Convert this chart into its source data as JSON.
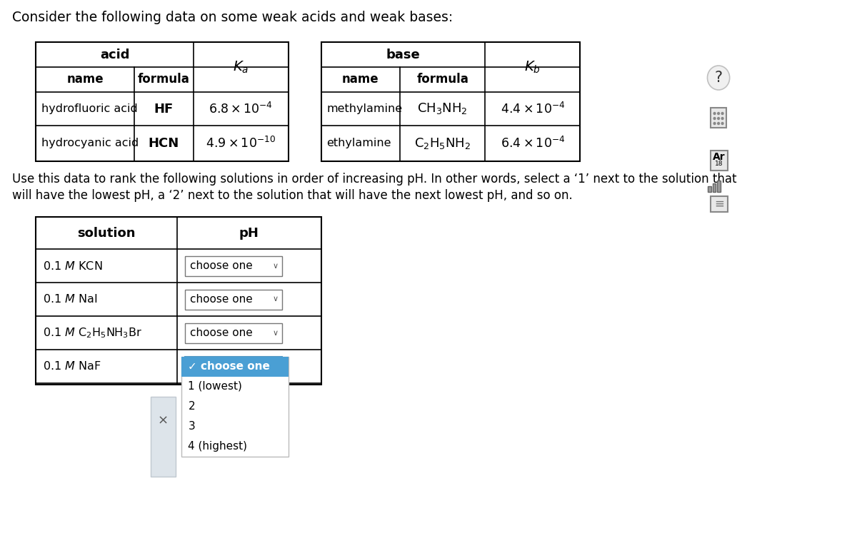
{
  "title": "Consider the following data on some weak acids and weak bases:",
  "instruction_line1": "Use this data to rank the following solutions in order of increasing pH. In other words, select a ‘1’ next to the solution that",
  "instruction_line2": "will have the lowest pH, a ‘2’ next to the solution that will have the next lowest pH, and so on.",
  "acid_rows": [
    {
      "name": "hydrofluoric acid",
      "formula": "HF",
      "ka_tex": "$6.8 \\times 10^{-4}$"
    },
    {
      "name": "hydrocyanic acid",
      "formula": "HCN",
      "ka_tex": "$4.9 \\times 10^{-10}$"
    }
  ],
  "base_rows": [
    {
      "name": "methylamine",
      "formula_tex": "$\\mathrm{CH_3NH_2}$",
      "kb_tex": "$4.4 \\times 10^{-4}$"
    },
    {
      "name": "ethylamine",
      "formula_tex": "$\\mathrm{C_2H_5NH_2}$",
      "kb_tex": "$6.4 \\times 10^{-4}$"
    }
  ],
  "sol_labels": [
    "0.1 $\\mathit{M}$ KCN",
    "0.1 $\\mathit{M}$ NaI",
    "0.1 $\\mathit{M}$ C$_2$H$_5$NH$_3$Br",
    "0.1 $\\mathit{M}$ NaF"
  ],
  "dropdown_items": [
    "✓ choose one",
    "1 (lowest)",
    "2",
    "3",
    "4 (highest)"
  ],
  "bg_color": "#ffffff",
  "blue_color": "#4a9fd4",
  "border_dark": "#333333",
  "border_light": "#888888"
}
